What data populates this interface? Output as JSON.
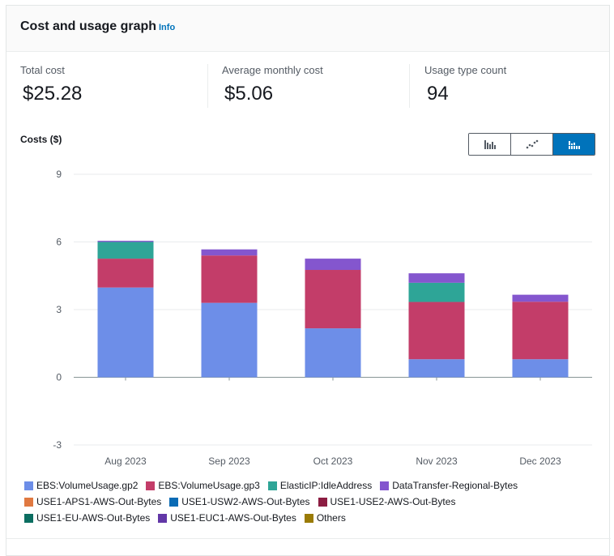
{
  "header": {
    "title": "Cost and usage graph",
    "info_label": "Info"
  },
  "stats": [
    {
      "label": "Total cost",
      "value": "$25.28"
    },
    {
      "label": "Average monthly cost",
      "value": "$5.06"
    },
    {
      "label": "Usage type count",
      "value": "94"
    }
  ],
  "costs_label": "Costs ($)",
  "view_toggle": {
    "options": [
      "bar-chart-icon",
      "line-chart-icon",
      "stacked-bar-chart-icon"
    ],
    "selected": 2,
    "accent_color": "#0073bb"
  },
  "chart_data": {
    "type": "bar",
    "stacked": true,
    "categories": [
      "Aug 2023",
      "Sep 2023",
      "Oct 2023",
      "Nov 2023",
      "Dec 2023"
    ],
    "ylim": [
      -3,
      9
    ],
    "yticks": [
      "9",
      "6",
      "3",
      "0",
      "-3"
    ],
    "ytick_values": [
      9,
      6,
      3,
      0,
      -3
    ],
    "xlabel": "",
    "ylabel": "Costs ($)",
    "grid": true,
    "legend_placement": "bottom",
    "series": [
      {
        "name": "EBS:VolumeUsage.gp2",
        "color": "#6d8ee8",
        "values": [
          3.98,
          3.3,
          2.17,
          0.8,
          0.8
        ]
      },
      {
        "name": "EBS:VolumeUsage.gp3",
        "color": "#c33d69",
        "values": [
          1.28,
          2.1,
          2.59,
          2.54,
          2.55
        ]
      },
      {
        "name": "ElasticIP:IdleAddress",
        "color": "#2ea597",
        "values": [
          0.74,
          0,
          0,
          0.85,
          0
        ]
      },
      {
        "name": "DataTransfer-Regional-Bytes",
        "color": "#8456ce",
        "values": [
          0.05,
          0.27,
          0.5,
          0.42,
          0.31
        ]
      },
      {
        "name": "USE1-APS1-AWS-Out-Bytes",
        "color": "#e07941",
        "values": [
          0,
          0,
          0,
          0,
          0
        ]
      },
      {
        "name": "USE1-USW2-AWS-Out-Bytes",
        "color": "#3759ce",
        "values": [
          0,
          0,
          0,
          0,
          0
        ]
      },
      {
        "name": "USE1-USE2-AWS-Out-Bytes",
        "color": "#962249",
        "values": [
          0,
          0,
          0,
          0,
          0
        ]
      },
      {
        "name": "USE1-EU-AWS-Out-Bytes",
        "color": "#096f64",
        "values": [
          0,
          0,
          0,
          0,
          0
        ]
      },
      {
        "name": "USE1-EUC1-AWS-Out-Bytes",
        "color": "#6237a7",
        "values": [
          0,
          0,
          0,
          0,
          0
        ]
      },
      {
        "name": "Others",
        "color": "#a84401",
        "values": [
          0,
          0,
          0,
          0,
          0
        ]
      }
    ]
  },
  "legend": {
    "rows": [
      [
        {
          "label": "EBS:VolumeUsage.gp2",
          "color": "#6d8ee8"
        },
        {
          "label": "EBS:VolumeUsage.gp3",
          "color": "#c33d69"
        },
        {
          "label": "ElasticIP:IdleAddress",
          "color": "#2ea597"
        },
        {
          "label": "DataTransfer-Regional-Bytes",
          "color": "#8456ce"
        }
      ],
      [
        {
          "label": "USE1-APS1-AWS-Out-Bytes",
          "color": "#e07941"
        },
        {
          "label": "USE1-USW2-AWS-Out-Bytes",
          "color": "#0a6bb5"
        },
        {
          "label": "USE1-USE2-AWS-Out-Bytes",
          "color": "#8c1d42"
        }
      ],
      [
        {
          "label": "USE1-EU-AWS-Out-Bytes",
          "color": "#0b6e61"
        },
        {
          "label": "USE1-EUC1-AWS-Out-Bytes",
          "color": "#6237a7"
        },
        {
          "label": "Others",
          "color": "#9a7b06"
        }
      ]
    ]
  }
}
